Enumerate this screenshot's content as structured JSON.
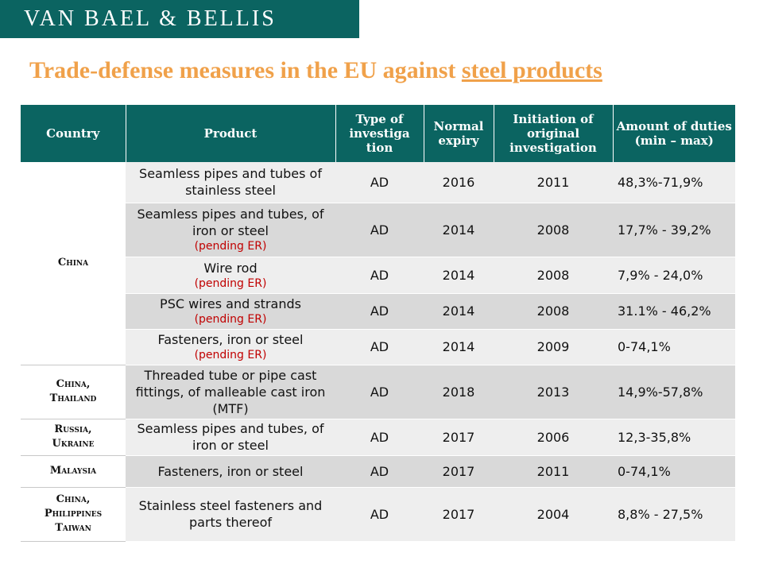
{
  "brand": {
    "name": "VAN BAEL & BELLIS"
  },
  "title": {
    "prefix": "Trade-defense measures in the EU against ",
    "underlined": "steel products"
  },
  "table": {
    "headers": [
      "Country",
      "Product",
      "Type of investiga tion",
      "Normal expiry",
      "Initiation of original investigation",
      "Amount of duties (min – max)"
    ],
    "rows": [
      {
        "product": "Seamless pipes and tubes of stainless steel",
        "note": "",
        "type": "AD",
        "expiry": "2016",
        "initiation": "2011",
        "amount": "48,3%-71,9%"
      },
      {
        "product": "Seamless pipes and tubes, of iron or steel",
        "note": "(pending ER)",
        "type": "AD",
        "expiry": "2014",
        "initiation": "2008",
        "amount": "17,7% - 39,2%"
      },
      {
        "product": "Wire rod",
        "note": "(pending ER)",
        "type": "AD",
        "expiry": "2014",
        "initiation": "2008",
        "amount": "7,9% - 24,0%"
      },
      {
        "product": "PSC wires and strands",
        "note": "(pending ER)",
        "type": "AD",
        "expiry": "2014",
        "initiation": "2008",
        "amount": "31.1% - 46,2%"
      },
      {
        "product": "Fasteners, iron or steel",
        "note": "(pending ER)",
        "type": "AD",
        "expiry": "2014",
        "initiation": "2009",
        "amount": "0-74,1%"
      },
      {
        "product": "Threaded tube or pipe cast fittings, of malleable cast iron (MTF)",
        "note": "",
        "type": "AD",
        "expiry": "2018",
        "initiation": "2013",
        "amount": "14,9%-57,8%"
      },
      {
        "product": "Seamless pipes and tubes, of iron or steel",
        "note": "",
        "type": "AD",
        "expiry": "2017",
        "initiation": "2006",
        "amount": "12,3-35,8%"
      },
      {
        "product": "Fasteners, iron or steel",
        "note": "",
        "type": "AD",
        "expiry": "2017",
        "initiation": "2011",
        "amount": "0-74,1%"
      },
      {
        "product": "Stainless steel fasteners and parts thereof",
        "note": "",
        "type": "AD",
        "expiry": "2017",
        "initiation": "2004",
        "amount": "8,8% - 27,5%"
      }
    ],
    "countries": [
      {
        "line1": "China",
        "line2": "",
        "line3": ""
      },
      {
        "line1": "China,",
        "line2": "Thailand",
        "line3": ""
      },
      {
        "line1": "Russia,",
        "line2": "Ukraine",
        "line3": ""
      },
      {
        "line1": "Malaysia",
        "line2": "",
        "line3": ""
      },
      {
        "line1": "China,",
        "line2": "Philippines",
        "line3": "Taiwan"
      }
    ]
  }
}
